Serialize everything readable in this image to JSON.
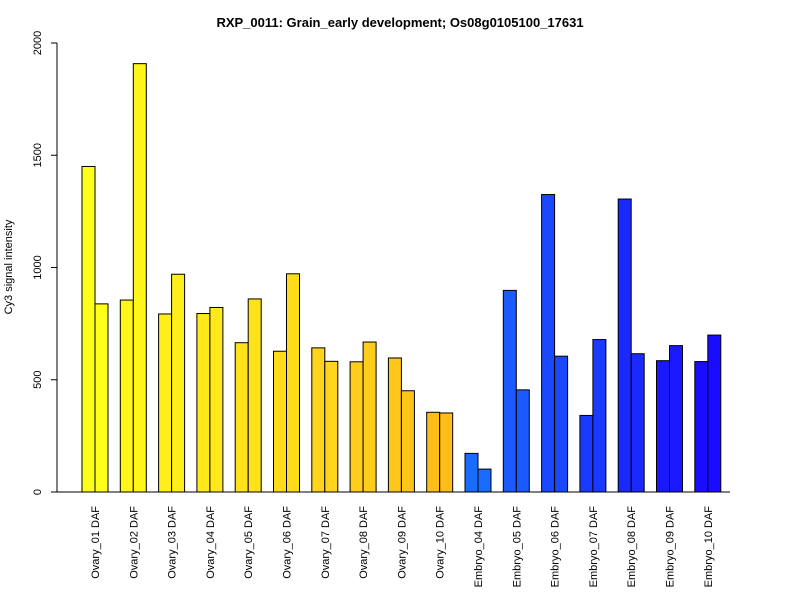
{
  "chart_data": {
    "type": "bar",
    "title": "RXP_0011: Grain_early development; Os08g0105100_17631",
    "xlabel": "",
    "ylabel": "Cy3 signal intensity",
    "ylim": [
      0,
      2000
    ],
    "yticks": [
      0,
      500,
      1000,
      1500,
      2000
    ],
    "grid": false,
    "legend": "none",
    "categories": [
      "Ovary_01 DAF",
      "Ovary_02 DAF",
      "Ovary_03 DAF",
      "Ovary_04 DAF",
      "Ovary_05 DAF",
      "Ovary_06 DAF",
      "Ovary_07 DAF",
      "Ovary_08 DAF",
      "Ovary_09 DAF",
      "Ovary_10 DAF",
      "Embryo_04 DAF",
      "Embryo_05 DAF",
      "Embryo_06 DAF",
      "Embryo_07 DAF",
      "Embryo_08 DAF",
      "Embryo_09 DAF",
      "Embryo_10 DAF"
    ],
    "series": [
      {
        "values": [
          1450,
          855,
          793,
          795,
          665,
          627,
          642,
          580,
          597,
          355,
          172,
          898,
          1325,
          341,
          1305,
          585,
          581
        ]
      },
      {
        "values": [
          838,
          1908,
          970,
          822,
          860,
          972,
          582,
          668,
          451,
          352,
          102,
          455,
          605,
          679,
          616,
          652,
          699
        ]
      }
    ],
    "colors": [
      "#ffff1a",
      "#fff51a",
      "#ffee1a",
      "#ffe91a",
      "#ffe21a",
      "#ffdc1a",
      "#ffd41a",
      "#ffcd1a",
      "#ffc61a",
      "#ffbd1a",
      "#1a6bff",
      "#1a5aff",
      "#1a48ff",
      "#1a3aff",
      "#1a2aff",
      "#1a18ff",
      "#1a0cff"
    ]
  }
}
